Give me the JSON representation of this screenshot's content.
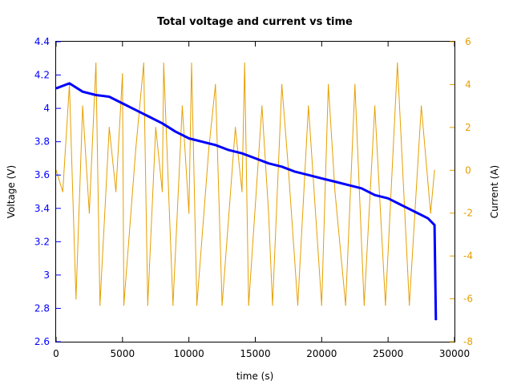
{
  "chart_data": {
    "type": "line",
    "title": "Total voltage and current vs time",
    "xlabel": "time (s)",
    "ylabel_left": "Voltage (V)",
    "ylabel_right": "Current (A)",
    "xlim": [
      0,
      30000
    ],
    "ylim_left": [
      2.6,
      4.4
    ],
    "ylim_right": [
      -8,
      6
    ],
    "x_ticks": [
      "0",
      "5000",
      "10000",
      "15000",
      "20000",
      "25000",
      "30000"
    ],
    "y_ticks_left": [
      "2.6",
      "2.8",
      "3",
      "3.2",
      "3.4",
      "3.6",
      "3.8",
      "4",
      "4.2",
      "4.4"
    ],
    "y_ticks_right": [
      "-8",
      "-6",
      "-4",
      "-2",
      "0",
      "2",
      "4",
      "6"
    ],
    "grid": false,
    "series": [
      {
        "axis": "left",
        "color": "#0000ff",
        "points": [
          [
            0,
            4.12
          ],
          [
            1000,
            4.15
          ],
          [
            2000,
            4.1
          ],
          [
            3000,
            4.08
          ],
          [
            4000,
            4.07
          ],
          [
            5000,
            4.03
          ],
          [
            6000,
            3.99
          ],
          [
            7000,
            3.95
          ],
          [
            8000,
            3.91
          ],
          [
            9000,
            3.86
          ],
          [
            10000,
            3.82
          ],
          [
            11000,
            3.8
          ],
          [
            12000,
            3.78
          ],
          [
            13000,
            3.75
          ],
          [
            14000,
            3.73
          ],
          [
            15000,
            3.7
          ],
          [
            16000,
            3.67
          ],
          [
            17000,
            3.65
          ],
          [
            18000,
            3.62
          ],
          [
            19000,
            3.6
          ],
          [
            20000,
            3.58
          ],
          [
            21000,
            3.56
          ],
          [
            22000,
            3.54
          ],
          [
            23000,
            3.52
          ],
          [
            24000,
            3.48
          ],
          [
            25000,
            3.46
          ],
          [
            26000,
            3.42
          ],
          [
            27000,
            3.38
          ],
          [
            28000,
            3.34
          ],
          [
            28500,
            3.3
          ],
          [
            28600,
            2.73
          ]
        ]
      },
      {
        "axis": "right",
        "color": "#e69f00",
        "points": [
          [
            0,
            0
          ],
          [
            500,
            -1
          ],
          [
            1000,
            4
          ],
          [
            1500,
            -6
          ],
          [
            2000,
            3
          ],
          [
            2500,
            -2
          ],
          [
            3000,
            5
          ],
          [
            3300,
            -6.3
          ],
          [
            4000,
            2
          ],
          [
            4500,
            -1
          ],
          [
            5000,
            4.5
          ],
          [
            5100,
            -6.3
          ],
          [
            6000,
            1
          ],
          [
            6600,
            5
          ],
          [
            6900,
            -6.3
          ],
          [
            7500,
            2
          ],
          [
            8000,
            -1
          ],
          [
            8100,
            5
          ],
          [
            8800,
            -6.3
          ],
          [
            9500,
            3
          ],
          [
            10000,
            -2
          ],
          [
            10200,
            5
          ],
          [
            10600,
            -6.3
          ],
          [
            11500,
            1
          ],
          [
            12000,
            4
          ],
          [
            12500,
            -6.3
          ],
          [
            13500,
            2
          ],
          [
            14000,
            -1
          ],
          [
            14200,
            5
          ],
          [
            14500,
            -6.3
          ],
          [
            15500,
            3
          ],
          [
            16000,
            -2
          ],
          [
            16300,
            -6.3
          ],
          [
            17000,
            4
          ],
          [
            17500,
            0
          ],
          [
            18200,
            -6.3
          ],
          [
            19000,
            3
          ],
          [
            20000,
            -6.3
          ],
          [
            20500,
            4
          ],
          [
            21000,
            -1
          ],
          [
            21800,
            -6.3
          ],
          [
            22500,
            4
          ],
          [
            23200,
            -6.3
          ],
          [
            24000,
            3
          ],
          [
            24800,
            -6.3
          ],
          [
            25700,
            5
          ],
          [
            26600,
            -6.3
          ],
          [
            27500,
            3
          ],
          [
            28200,
            -2
          ],
          [
            28500,
            0
          ]
        ]
      }
    ]
  }
}
